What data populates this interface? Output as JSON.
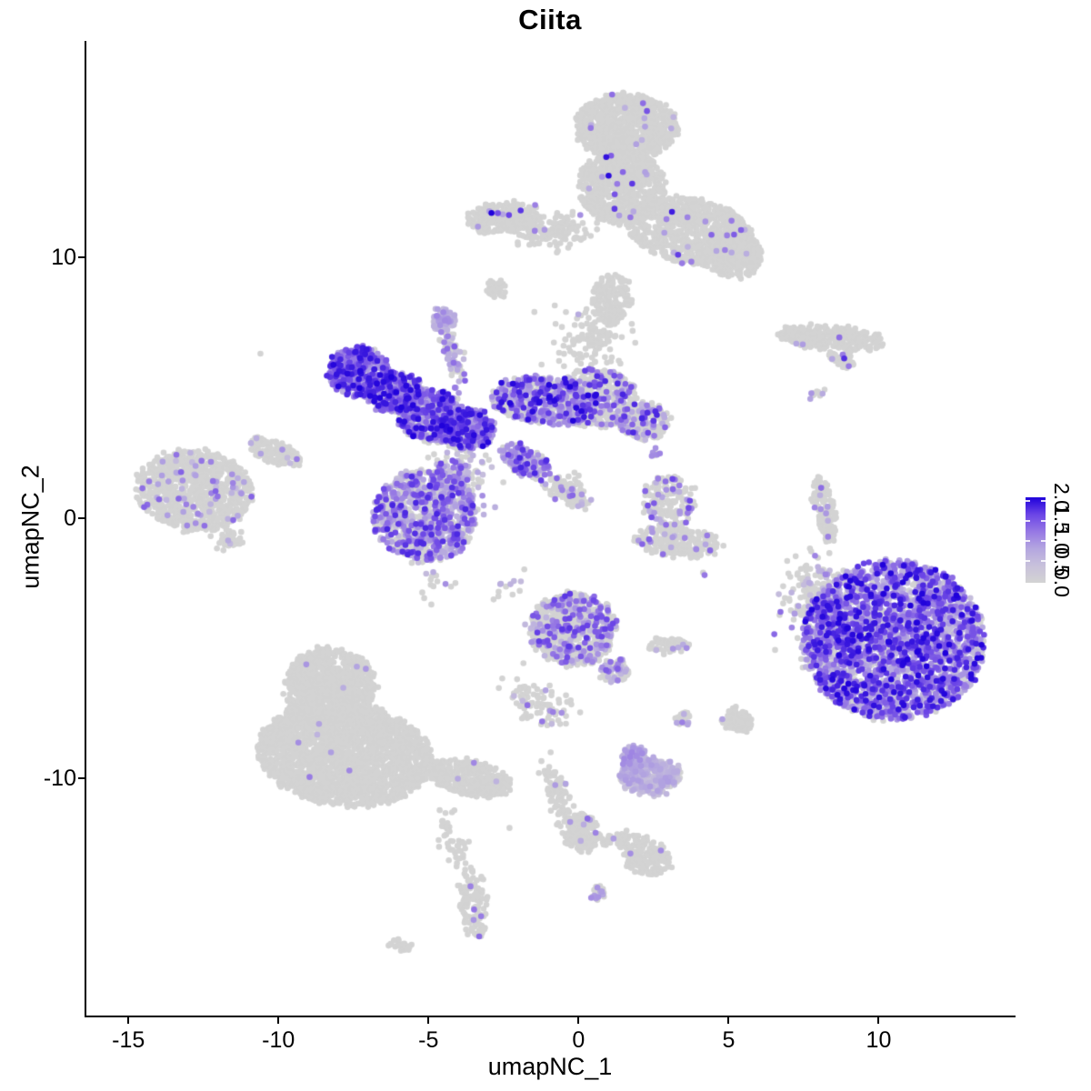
{
  "chart_data": {
    "type": "scatter",
    "title": "Ciita",
    "xlabel": "umapNC_1",
    "ylabel": "umapNC_2",
    "x_ticks": [
      -15,
      -10,
      -5,
      0,
      5,
      10
    ],
    "y_ticks": [
      -10,
      0,
      10
    ],
    "xlim": [
      -16.4,
      14.5
    ],
    "ylim": [
      -19.1,
      18.3
    ],
    "grid": false,
    "point_radius_px": 3.3,
    "colors": {
      "background": "#ffffff",
      "axis": "#000000",
      "zero_expression": "#D3D3D3",
      "gradient_stops": [
        "#D3D3D3",
        "#C8C1DB",
        "#B4A6E0",
        "#9678E4",
        "#6B45E6",
        "#1F00DB"
      ]
    },
    "legend": {
      "position": "right-middle",
      "min": 0,
      "max": 2,
      "labels": [
        "2.0",
        "1.5",
        "1.0",
        "0.5",
        "0.0"
      ],
      "label_values": [
        2.0,
        1.5,
        1.0,
        0.5,
        0.0
      ],
      "bar_tick_values": [
        2.0,
        1.5,
        1.0,
        0.5
      ]
    },
    "clusters": [
      {
        "name": "top-main-upper",
        "x": 1.6,
        "y": 15.0,
        "rx": 1.7,
        "ry": 1.25,
        "rot": 0,
        "n": 900,
        "shape": "disc",
        "frac": 0.015,
        "lo": 0.6,
        "hi": 2.0
      },
      {
        "name": "top-main-mid",
        "x": 1.45,
        "y": 12.7,
        "rx": 1.45,
        "ry": 1.4,
        "rot": 0,
        "n": 750,
        "shape": "disc",
        "frac": 0.015,
        "lo": 0.6,
        "hi": 2.0
      },
      {
        "name": "top-main-right",
        "x": 3.7,
        "y": 11.0,
        "rx": 2.1,
        "ry": 1.25,
        "rot": -12,
        "n": 750,
        "shape": "disc",
        "frac": 0.02,
        "lo": 0.6,
        "hi": 2.0
      },
      {
        "name": "top-left-band",
        "x": -2.5,
        "y": 11.5,
        "rx": 1.25,
        "ry": 0.6,
        "rot": 5,
        "n": 260,
        "shape": "disc",
        "frac": 0.03,
        "lo": 0.8,
        "hi": 2.0
      },
      {
        "name": "top-band-bridge",
        "x": -0.8,
        "y": 11.0,
        "rx": 1.1,
        "ry": 0.5,
        "rot": 0,
        "n": 140,
        "shape": "gauss",
        "frac": 0.02,
        "lo": 0.6,
        "hi": 1.6
      },
      {
        "name": "top-right-lobe",
        "x": 5.2,
        "y": 10.1,
        "rx": 1.0,
        "ry": 0.9,
        "rot": 0,
        "n": 280,
        "shape": "disc",
        "frac": 0.02,
        "lo": 0.6,
        "hi": 1.6
      },
      {
        "name": "top-neck",
        "x": 1.1,
        "y": 8.4,
        "rx": 0.65,
        "ry": 0.95,
        "rot": 0,
        "n": 160,
        "shape": "disc",
        "frac": 0.01,
        "lo": 0.6,
        "hi": 1.4
      },
      {
        "name": "top-neck-sparse",
        "x": 0.4,
        "y": 6.9,
        "rx": 1.1,
        "ry": 0.95,
        "rot": 0,
        "n": 120,
        "shape": "gauss",
        "frac": 0.03,
        "lo": 0.6,
        "hi": 1.4
      },
      {
        "name": "top-small-isle",
        "x": -2.7,
        "y": 8.8,
        "rx": 0.3,
        "ry": 0.35,
        "rot": 0,
        "n": 30,
        "shape": "disc",
        "frac": 0,
        "lo": 0,
        "hi": 0
      },
      {
        "name": "central-arm-upleft",
        "x": -7.3,
        "y": 5.6,
        "rx": 1.05,
        "ry": 0.95,
        "rot": -20,
        "n": 460,
        "shape": "disc",
        "frac": 0.88,
        "lo": 0.7,
        "hi": 2.0
      },
      {
        "name": "central-arm-upleft2",
        "x": -6.1,
        "y": 4.8,
        "rx": 0.9,
        "ry": 0.8,
        "rot": 0,
        "n": 320,
        "shape": "disc",
        "frac": 0.8,
        "lo": 0.6,
        "hi": 2.0
      },
      {
        "name": "central-core-left",
        "x": -4.9,
        "y": 3.9,
        "rx": 1.15,
        "ry": 1.0,
        "rot": -25,
        "n": 520,
        "shape": "disc",
        "frac": 0.8,
        "lo": 0.6,
        "hi": 2.0
      },
      {
        "name": "central-core",
        "x": -3.7,
        "y": 3.4,
        "rx": 0.9,
        "ry": 0.8,
        "rot": 0,
        "n": 360,
        "shape": "disc",
        "frac": 0.78,
        "lo": 0.6,
        "hi": 2.0
      },
      {
        "name": "central-top-knob",
        "x": -4.5,
        "y": 7.6,
        "rx": 0.38,
        "ry": 0.45,
        "rot": 0,
        "n": 75,
        "shape": "disc",
        "frac": 0.9,
        "lo": 0.4,
        "hi": 1.1
      },
      {
        "name": "central-top-stem",
        "x": -4.2,
        "y": 6.2,
        "rx": 0.25,
        "ry": 0.95,
        "rot": 8,
        "n": 70,
        "shape": "gauss",
        "frac": 0.55,
        "lo": 0.4,
        "hi": 1.4
      },
      {
        "name": "central-arm-right",
        "x": -1.1,
        "y": 4.5,
        "rx": 1.8,
        "ry": 0.9,
        "rot": -6,
        "n": 620,
        "shape": "disc",
        "frac": 0.55,
        "lo": 0.5,
        "hi": 2.0
      },
      {
        "name": "central-arm-right-grey",
        "x": 0.55,
        "y": 4.6,
        "rx": 1.4,
        "ry": 1.15,
        "rot": 0,
        "n": 460,
        "shape": "disc",
        "frac": 0.3,
        "lo": 0.5,
        "hi": 1.8
      },
      {
        "name": "central-arm-right-end",
        "x": 2.2,
        "y": 3.7,
        "rx": 0.8,
        "ry": 0.75,
        "rot": 0,
        "n": 210,
        "shape": "disc",
        "frac": 0.3,
        "lo": 0.5,
        "hi": 1.8
      },
      {
        "name": "central-diag-arm",
        "x": -1.8,
        "y": 2.2,
        "rx": 0.9,
        "ry": 0.5,
        "rot": -35,
        "n": 170,
        "shape": "disc",
        "frac": 0.6,
        "lo": 0.5,
        "hi": 1.8
      },
      {
        "name": "central-diag-tail",
        "x": -0.4,
        "y": 1.0,
        "rx": 0.7,
        "ry": 0.35,
        "rot": -30,
        "n": 110,
        "shape": "gauss",
        "frac": 0.15,
        "lo": 0.5,
        "hi": 1.5
      },
      {
        "name": "central-bottom-blob",
        "x": -5.1,
        "y": 0.1,
        "rx": 1.75,
        "ry": 1.75,
        "rot": 0,
        "n": 980,
        "shape": "disc",
        "frac": 0.58,
        "lo": 0.4,
        "hi": 1.8
      },
      {
        "name": "central-bridge-down",
        "x": -4.0,
        "y": 1.7,
        "rx": 0.8,
        "ry": 0.9,
        "rot": 0,
        "n": 160,
        "shape": "gauss",
        "frac": 0.6,
        "lo": 0.4,
        "hi": 1.6
      },
      {
        "name": "midright-small",
        "x": 3.0,
        "y": 0.65,
        "rx": 0.9,
        "ry": 1.0,
        "rot": 0,
        "n": 170,
        "shape": "disc",
        "frac": 0.22,
        "lo": 0.6,
        "hi": 1.6
      },
      {
        "name": "midright-crescent",
        "x": 3.3,
        "y": -0.9,
        "rx": 1.45,
        "ry": 0.6,
        "rot": -8,
        "n": 230,
        "shape": "disc",
        "frac": 0.08,
        "lo": 0.6,
        "hi": 1.4
      },
      {
        "name": "midright-dotpair",
        "x": 2.6,
        "y": 2.5,
        "rx": 0.18,
        "ry": 0.18,
        "rot": 0,
        "n": 7,
        "shape": "disc",
        "frac": 0.35,
        "lo": 0.8,
        "hi": 1.2
      },
      {
        "name": "scatter-below-center",
        "x": -2.2,
        "y": -2.6,
        "rx": 0.5,
        "ry": 0.4,
        "rot": 0,
        "n": 12,
        "shape": "gauss",
        "frac": 0.15,
        "lo": 0.5,
        "hi": 1.0
      },
      {
        "name": "scatter-below-blob",
        "x": -4.8,
        "y": -2.4,
        "rx": 0.6,
        "ry": 0.5,
        "rot": 0,
        "n": 15,
        "shape": "gauss",
        "frac": 0.25,
        "lo": 0.5,
        "hi": 1.2
      },
      {
        "name": "left-cluster",
        "x": -12.8,
        "y": 1.05,
        "rx": 1.95,
        "ry": 1.55,
        "rot": -8,
        "n": 960,
        "shape": "disc",
        "frac": 0.065,
        "lo": 0.5,
        "hi": 1.4
      },
      {
        "name": "left-cluster-tail",
        "x": -10.1,
        "y": 2.5,
        "rx": 0.9,
        "ry": 0.4,
        "rot": -28,
        "n": 130,
        "shape": "disc",
        "frac": 0.04,
        "lo": 0.5,
        "hi": 1.2
      },
      {
        "name": "left-cluster-bit",
        "x": -11.6,
        "y": -0.9,
        "rx": 0.35,
        "ry": 0.3,
        "rot": 0,
        "n": 45,
        "shape": "gauss",
        "frac": 0.03,
        "lo": 0.5,
        "hi": 1.0
      },
      {
        "name": "right-strip",
        "x": 8.4,
        "y": 6.9,
        "rx": 1.8,
        "ry": 0.45,
        "rot": -6,
        "n": 270,
        "shape": "disc",
        "frac": 0.02,
        "lo": 0.7,
        "hi": 1.4
      },
      {
        "name": "right-streak",
        "x": 8.8,
        "y": 6.05,
        "rx": 0.45,
        "ry": 0.25,
        "rot": -30,
        "n": 48,
        "shape": "disc",
        "frac": 0.12,
        "lo": 0.8,
        "hi": 2.0
      },
      {
        "name": "right-dotpair",
        "x": 7.9,
        "y": 4.7,
        "rx": 0.22,
        "ry": 0.22,
        "rot": 0,
        "n": 12,
        "shape": "disc",
        "frac": 0.3,
        "lo": 0.7,
        "hi": 1.2
      },
      {
        "name": "right-vstrip",
        "x": 8.2,
        "y": 0.3,
        "rx": 0.3,
        "ry": 1.3,
        "rot": 10,
        "n": 130,
        "shape": "disc",
        "frac": 0.05,
        "lo": 0.6,
        "hi": 1.3
      },
      {
        "name": "right-vstrip-dot",
        "x": 8.1,
        "y": -2.0,
        "rx": 0.15,
        "ry": 0.12,
        "rot": 0,
        "n": 3,
        "shape": "gauss",
        "frac": 0.2,
        "lo": 0.6,
        "hi": 1.0
      },
      {
        "name": "bigright-main",
        "x": 10.5,
        "y": -4.7,
        "rx": 3.05,
        "ry": 3.05,
        "rot": 15,
        "n": 2750,
        "shape": "disc",
        "frac": 0.8,
        "lo": 0.4,
        "hi": 2.0
      },
      {
        "name": "bigright-fringe",
        "x": 7.8,
        "y": -3.6,
        "rx": 0.8,
        "ry": 1.55,
        "rot": 10,
        "n": 190,
        "shape": "gauss",
        "frac": 0.3,
        "lo": 0.4,
        "hi": 1.4
      },
      {
        "name": "bigright-halo",
        "x": 8.1,
        "y": -2.4,
        "rx": 0.7,
        "ry": 0.55,
        "rot": 0,
        "n": 40,
        "shape": "gauss",
        "frac": 0.2,
        "lo": 0.4,
        "hi": 1.2
      },
      {
        "name": "bottomleft-knob",
        "x": -8.3,
        "y": -6.5,
        "rx": 1.5,
        "ry": 1.5,
        "rot": 0,
        "n": 900,
        "shape": "disc",
        "frac": 0.004,
        "lo": 0.6,
        "hi": 1.3
      },
      {
        "name": "bottomleft-main",
        "x": -7.8,
        "y": -9.1,
        "rx": 2.9,
        "ry": 1.95,
        "rot": -8,
        "n": 2300,
        "shape": "disc",
        "frac": 0.004,
        "lo": 0.6,
        "hi": 1.3
      },
      {
        "name": "bottomleft-tail",
        "x": -3.6,
        "y": -10.0,
        "rx": 1.45,
        "ry": 0.65,
        "rot": -14,
        "n": 360,
        "shape": "disc",
        "frac": 0.006,
        "lo": 0.6,
        "hi": 1.2
      },
      {
        "name": "bottomleft-trail",
        "x": -4.2,
        "y": -12.3,
        "rx": 0.3,
        "ry": 1.25,
        "rot": 15,
        "n": 45,
        "shape": "gauss",
        "frac": 0,
        "lo": 0,
        "hi": 0
      },
      {
        "name": "bottomleft-island",
        "x": -3.5,
        "y": -14.8,
        "rx": 0.45,
        "ry": 1.35,
        "rot": 5,
        "n": 130,
        "shape": "disc",
        "frac": 0.05,
        "lo": 0.8,
        "hi": 1.4
      },
      {
        "name": "bottomleft-dash",
        "x": -5.9,
        "y": -16.4,
        "rx": 0.4,
        "ry": 0.18,
        "rot": -20,
        "n": 25,
        "shape": "disc",
        "frac": 0,
        "lo": 0,
        "hi": 0
      },
      {
        "name": "centerbottom-main",
        "x": -0.2,
        "y": -4.25,
        "rx": 1.45,
        "ry": 1.4,
        "rot": 0,
        "n": 780,
        "shape": "disc",
        "frac": 0.3,
        "lo": 0.5,
        "hi": 1.7
      },
      {
        "name": "centerbottom-tail",
        "x": 1.2,
        "y": -5.9,
        "rx": 0.45,
        "ry": 0.45,
        "rot": 0,
        "n": 90,
        "shape": "disc",
        "frac": 0.25,
        "lo": 0.5,
        "hi": 1.5
      },
      {
        "name": "centerbottom-trail",
        "x": -1.4,
        "y": -7.1,
        "rx": 0.95,
        "ry": 0.6,
        "rot": -35,
        "n": 90,
        "shape": "gauss",
        "frac": 0.12,
        "lo": 0.5,
        "hi": 1.3
      },
      {
        "name": "centerbottom-isle-h",
        "x": 3.0,
        "y": -4.9,
        "rx": 0.7,
        "ry": 0.3,
        "rot": 0,
        "n": 70,
        "shape": "disc",
        "frac": 0.04,
        "lo": 0.6,
        "hi": 1.1
      },
      {
        "name": "centerbottom-tiny",
        "x": 3.5,
        "y": -7.7,
        "rx": 0.25,
        "ry": 0.25,
        "rot": 0,
        "n": 26,
        "shape": "disc",
        "frac": 0.2,
        "lo": 0.6,
        "hi": 1.2
      },
      {
        "name": "centerbottom-triangle",
        "x": 5.3,
        "y": -7.8,
        "rx": 0.45,
        "ry": 0.5,
        "rot": 0,
        "n": 85,
        "shape": "disc",
        "frac": 0.06,
        "lo": 0.6,
        "hi": 1.2
      },
      {
        "name": "lavender-cluster",
        "x": 2.4,
        "y": -9.9,
        "rx": 1.0,
        "ry": 0.72,
        "rot": -5,
        "n": 340,
        "shape": "disc",
        "frac": 0.8,
        "lo": 0.3,
        "hi": 0.9
      },
      {
        "name": "lavender-knob",
        "x": 1.8,
        "y": -9.2,
        "rx": 0.42,
        "ry": 0.42,
        "rot": 0,
        "n": 75,
        "shape": "disc",
        "frac": 0.75,
        "lo": 0.4,
        "hi": 1.1
      },
      {
        "name": "bottom-trail-left",
        "x": -0.7,
        "y": -10.6,
        "rx": 0.32,
        "ry": 1.15,
        "rot": 14,
        "n": 90,
        "shape": "gauss",
        "frac": 0.04,
        "lo": 0.5,
        "hi": 1.0
      },
      {
        "name": "bottom-y-blob",
        "x": 0.1,
        "y": -12.1,
        "rx": 0.55,
        "ry": 0.72,
        "rot": 0,
        "n": 170,
        "shape": "disc",
        "frac": 0.05,
        "lo": 0.7,
        "hi": 1.3
      },
      {
        "name": "bottom-y-arm",
        "x": 1.5,
        "y": -12.4,
        "rx": 0.85,
        "ry": 0.3,
        "rot": -5,
        "n": 80,
        "shape": "disc",
        "frac": 0.02,
        "lo": 0.6,
        "hi": 1.0
      },
      {
        "name": "bottom-y-end",
        "x": 2.3,
        "y": -13.1,
        "rx": 0.8,
        "ry": 0.58,
        "rot": -10,
        "n": 160,
        "shape": "disc",
        "frac": 0.03,
        "lo": 0.8,
        "hi": 1.2
      },
      {
        "name": "bottom-tiny",
        "x": 0.6,
        "y": -14.4,
        "rx": 0.26,
        "ry": 0.26,
        "rot": 0,
        "n": 30,
        "shape": "disc",
        "frac": 0.12,
        "lo": 0.7,
        "hi": 1.1
      }
    ],
    "single_points": [
      {
        "x": -2.9,
        "y": 11.7,
        "v": 2.0
      },
      {
        "x": -10.6,
        "y": 6.3,
        "v": 0
      },
      {
        "x": 4.2,
        "y": -2.2,
        "v": 1.2
      },
      {
        "x": 3.6,
        "y": -5.0,
        "v": 1.0
      },
      {
        "x": -2.3,
        "y": -11.9,
        "v": 0
      },
      {
        "x": 8.1,
        "y": -2.0,
        "v": 0
      },
      {
        "x": 4.15,
        "y": -2.1,
        "v": 0
      }
    ]
  }
}
